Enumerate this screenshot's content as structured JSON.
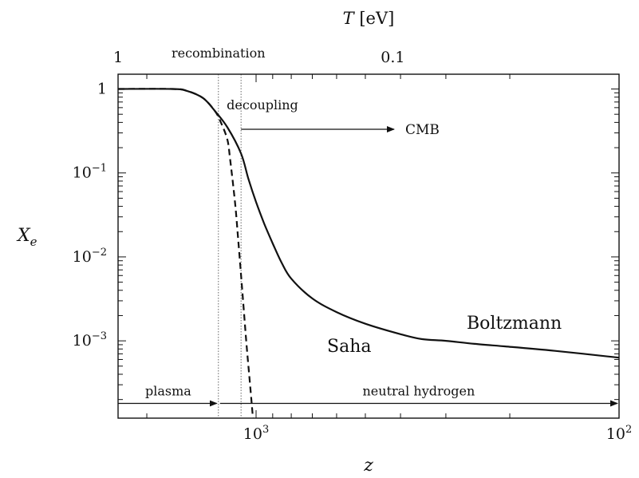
{
  "chart_data": {
    "type": "line",
    "title": "",
    "xlabel": "z",
    "ylabel": "X",
    "ylabel_sub": "e",
    "xscale": "log",
    "yscale": "log",
    "x_reversed": true,
    "xlim": [
      2400,
      100
    ],
    "ylim": [
      0.00012,
      1.5
    ],
    "grid": false,
    "x_ticks": [
      {
        "value": 1000,
        "base": "10",
        "exp": "3"
      },
      {
        "value": 100,
        "base": "10",
        "exp": "2"
      }
    ],
    "y_ticks": [
      {
        "value": 1,
        "base": "1",
        "exp": ""
      },
      {
        "value": 0.1,
        "base": "10",
        "exp": "−1"
      },
      {
        "value": 0.01,
        "base": "10",
        "exp": "−2"
      },
      {
        "value": 0.001,
        "base": "10",
        "exp": "−3"
      }
    ],
    "top_axis": {
      "label": "T",
      "unit": " [eV]",
      "ticks": [
        {
          "label": "1",
          "z": 2400
        },
        {
          "label": "0.1",
          "z": 420
        }
      ]
    },
    "series": [
      {
        "name": "Boltzmann",
        "style": "solid",
        "points": [
          [
            2400,
            1.0
          ],
          [
            1700,
            1.0
          ],
          [
            1550,
            0.95
          ],
          [
            1400,
            0.78
          ],
          [
            1300,
            0.55
          ],
          [
            1200,
            0.35
          ],
          [
            1100,
            0.17
          ],
          [
            1050,
            0.085
          ],
          [
            1000,
            0.045
          ],
          [
            950,
            0.025
          ],
          [
            900,
            0.0145
          ],
          [
            850,
            0.0085
          ],
          [
            800,
            0.0055
          ],
          [
            700,
            0.0032
          ],
          [
            600,
            0.0022
          ],
          [
            500,
            0.0016
          ],
          [
            400,
            0.0012
          ],
          [
            350,
            0.00105
          ],
          [
            300,
            0.001
          ],
          [
            250,
            0.00092
          ],
          [
            200,
            0.00085
          ],
          [
            150,
            0.00076
          ],
          [
            100,
            0.00063
          ]
        ]
      },
      {
        "name": "Saha",
        "style": "dashed",
        "points": [
          [
            2400,
            1.0
          ],
          [
            1700,
            1.0
          ],
          [
            1550,
            0.95
          ],
          [
            1400,
            0.78
          ],
          [
            1300,
            0.55
          ],
          [
            1250,
            0.4
          ],
          [
            1200,
            0.25
          ],
          [
            1180,
            0.15
          ],
          [
            1160,
            0.08
          ],
          [
            1140,
            0.04
          ],
          [
            1120,
            0.016
          ],
          [
            1100,
            0.006
          ],
          [
            1080,
            0.0022
          ],
          [
            1060,
            0.0008
          ],
          [
            1040,
            0.00032
          ],
          [
            1020,
            0.00012
          ]
        ]
      }
    ],
    "markers": [
      {
        "name": "recombination",
        "z": 1270
      },
      {
        "name": "decoupling",
        "z": 1100
      }
    ],
    "annotations": {
      "saha_label": "Saha",
      "boltzmann_label": "Boltzmann",
      "cmb_label": "CMB",
      "plasma_label": "plasma",
      "neutral_label": "neutral hydrogen"
    },
    "arrow_levels": {
      "bottom_arrows_y": 0.00018
    }
  }
}
